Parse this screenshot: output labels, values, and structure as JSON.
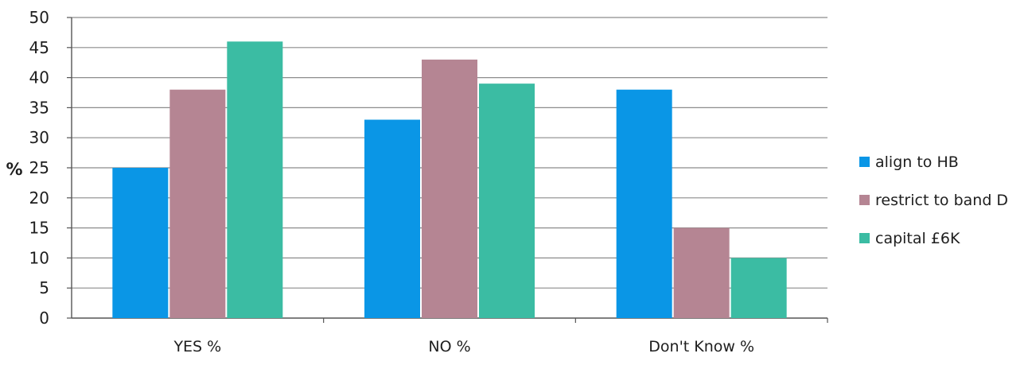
{
  "chart_data": {
    "type": "bar",
    "title": "",
    "xlabel": "",
    "ylabel": "%",
    "categories": [
      "YES %",
      "NO %",
      "Don't Know %"
    ],
    "series": [
      {
        "name": "align to HB",
        "values": [
          25,
          33,
          38
        ],
        "color": "#0a96e6"
      },
      {
        "name": "restrict to band D",
        "values": [
          38,
          43,
          15
        ],
        "color": "#b58593"
      },
      {
        "name": "capital £6K",
        "values": [
          46,
          39,
          10
        ],
        "color": "#3bbca3"
      }
    ],
    "ylim": [
      0,
      50
    ],
    "yticks": [
      0,
      5,
      10,
      15,
      20,
      25,
      30,
      35,
      40,
      45,
      50
    ],
    "grid": true,
    "legend_position": "right"
  }
}
